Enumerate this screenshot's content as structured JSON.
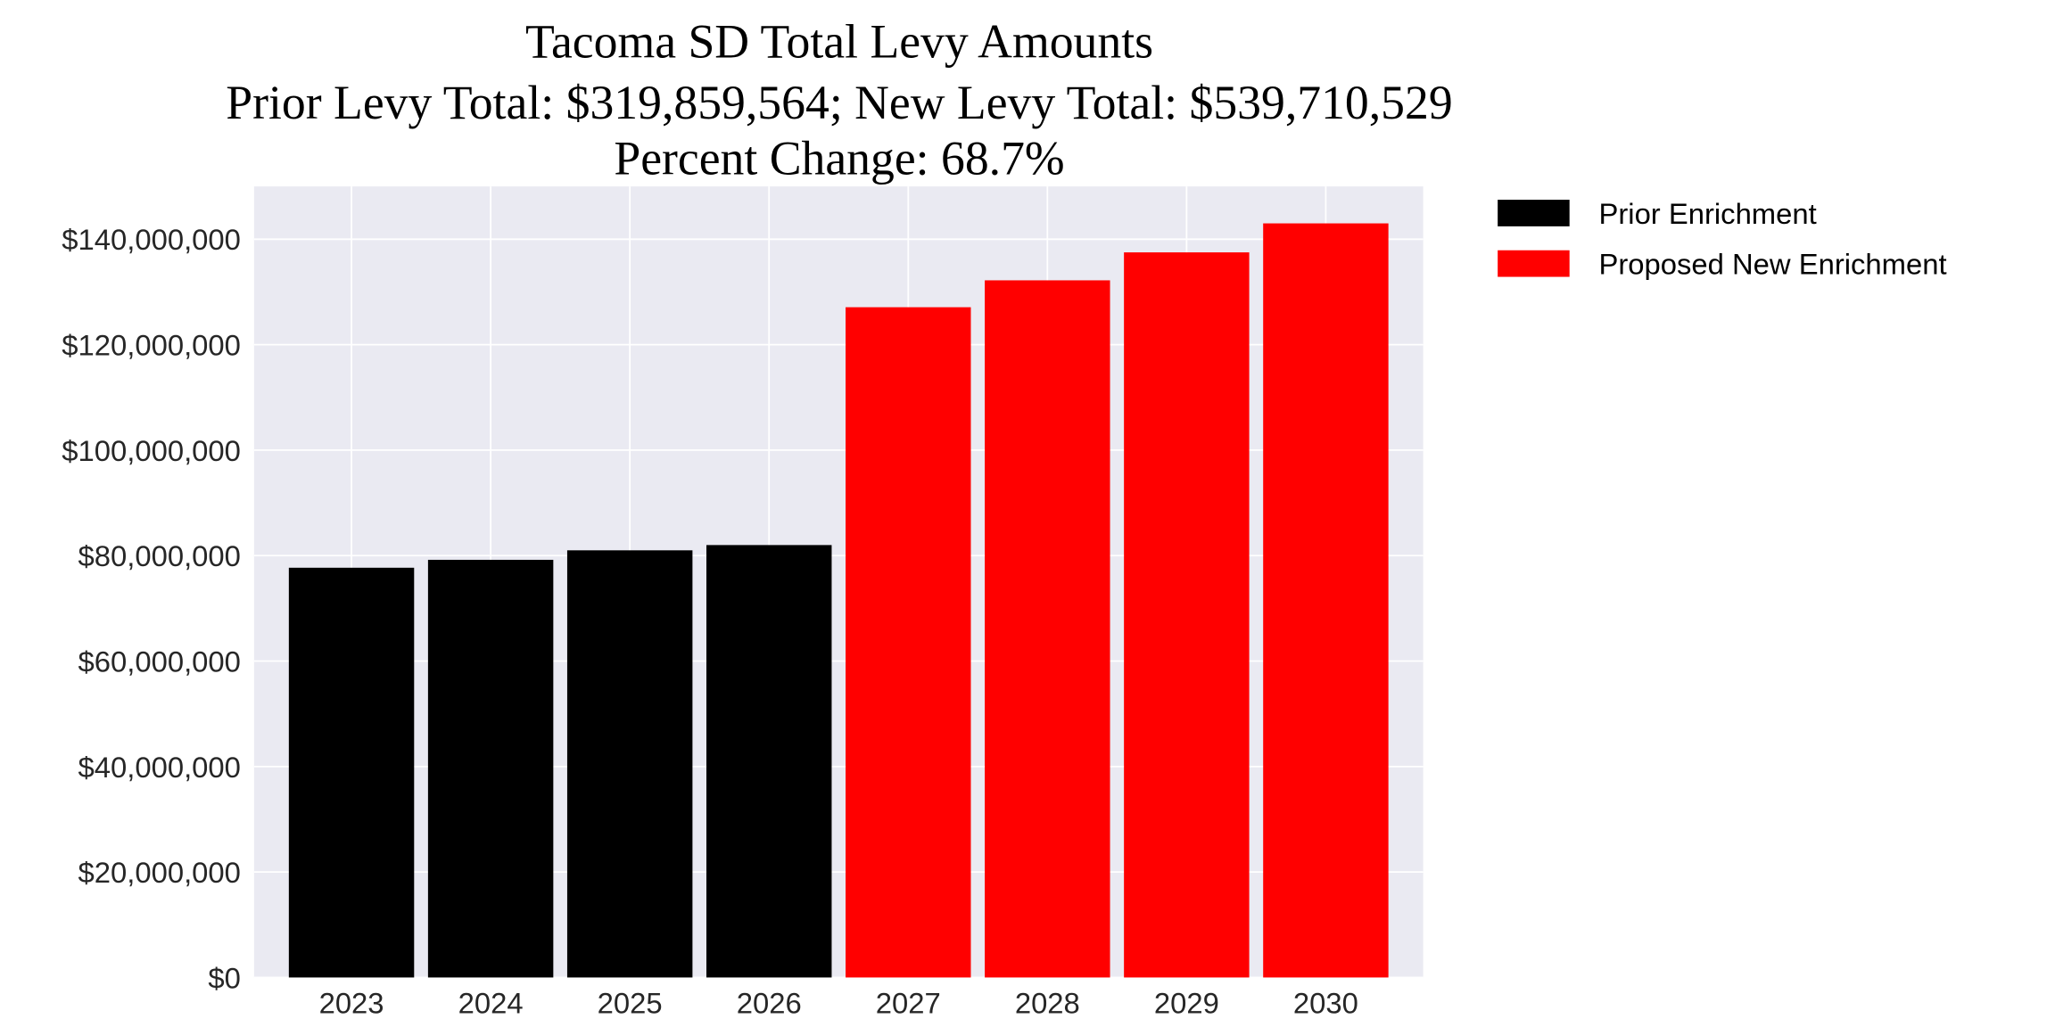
{
  "chart_data": {
    "type": "bar",
    "title_lines": [
      "Tacoma SD Total Levy Amounts",
      "Prior Levy Total:  $319,859,564; New Levy Total: $539,710,529",
      "Percent Change: 68.7%"
    ],
    "xlabel": "",
    "ylabel": "",
    "categories": [
      "2023",
      "2024",
      "2025",
      "2026",
      "2027",
      "2028",
      "2029",
      "2030"
    ],
    "series": [
      {
        "name": "Prior Enrichment",
        "color": "#000000",
        "values": [
          77700000,
          79200000,
          81000000,
          82000000,
          null,
          null,
          null,
          null
        ]
      },
      {
        "name": "Proposed New Enrichment",
        "color": "#ff0000",
        "values": [
          null,
          null,
          null,
          null,
          127100000,
          132200000,
          137500000,
          143000000
        ]
      }
    ],
    "ylim": [
      0,
      150000000
    ],
    "yticks": [
      0,
      20000000,
      40000000,
      60000000,
      80000000,
      100000000,
      120000000,
      140000000
    ],
    "ytick_labels": [
      "$0",
      "$20,000,000",
      "$40,000,000",
      "$60,000,000",
      "$80,000,000",
      "$100,000,000",
      "$120,000,000",
      "$140,000,000"
    ],
    "grid": true,
    "background_color": "#eaeaf2",
    "legend_position": "outside-right-top"
  }
}
